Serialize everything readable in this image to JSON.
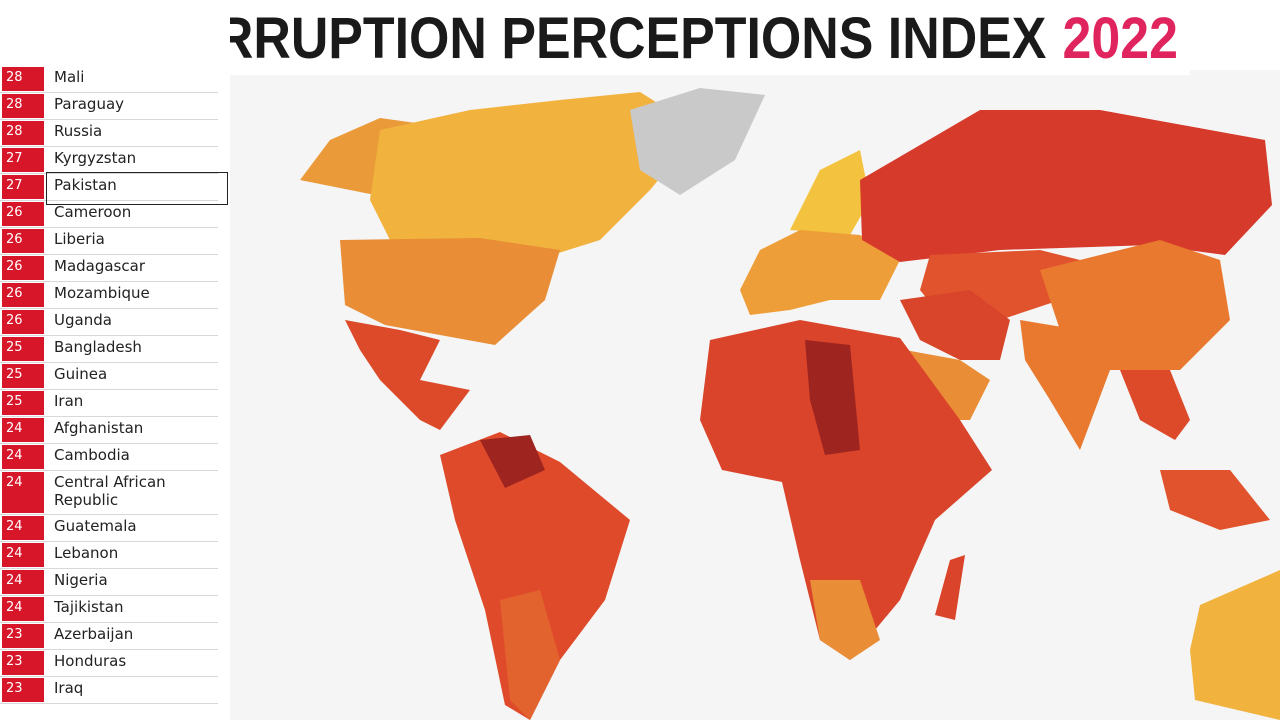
{
  "header": {
    "title": "CORRUPTION PERCEPTIONS INDEX",
    "year": "2022"
  },
  "list": {
    "rows": [
      {
        "score": "28",
        "country": "Mali"
      },
      {
        "score": "28",
        "country": "Paraguay"
      },
      {
        "score": "28",
        "country": "Russia"
      },
      {
        "score": "27",
        "country": "Kyrgyzstan"
      },
      {
        "score": "27",
        "country": "Pakistan"
      },
      {
        "score": "26",
        "country": "Cameroon"
      },
      {
        "score": "26",
        "country": "Liberia"
      },
      {
        "score": "26",
        "country": "Madagascar"
      },
      {
        "score": "26",
        "country": "Mozambique"
      },
      {
        "score": "26",
        "country": "Uganda"
      },
      {
        "score": "25",
        "country": "Bangladesh"
      },
      {
        "score": "25",
        "country": "Guinea"
      },
      {
        "score": "25",
        "country": "Iran"
      },
      {
        "score": "24",
        "country": "Afghanistan"
      },
      {
        "score": "24",
        "country": "Cambodia"
      },
      {
        "score": "24",
        "country": "Central African Republic"
      },
      {
        "score": "24",
        "country": "Guatemala"
      },
      {
        "score": "24",
        "country": "Lebanon"
      },
      {
        "score": "24",
        "country": "Nigeria"
      },
      {
        "score": "24",
        "country": "Tajikistan"
      },
      {
        "score": "23",
        "country": "Azerbaijan"
      },
      {
        "score": "23",
        "country": "Honduras"
      },
      {
        "score": "23",
        "country": "Iraq"
      }
    ]
  }
}
